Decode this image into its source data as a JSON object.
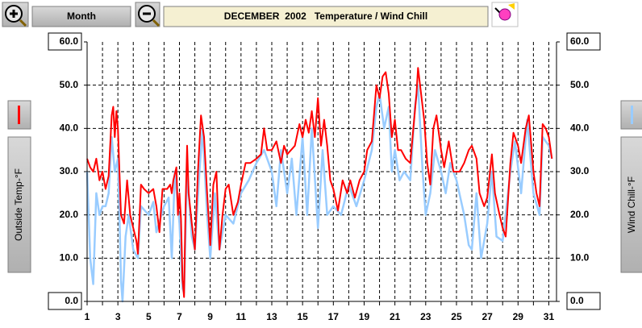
{
  "toolbar": {
    "button": "Month"
  },
  "chart_data": {
    "type": "line",
    "title": "DECEMBER  2002   Temperature / Wind Chill",
    "xlim": [
      1,
      31.5
    ],
    "xticks": [
      1,
      3,
      5,
      7,
      9,
      11,
      13,
      15,
      17,
      19,
      21,
      23,
      25,
      27,
      29,
      31
    ],
    "xminor_ticks": [
      2,
      4,
      6,
      8,
      10,
      12,
      14,
      16,
      18,
      20,
      22,
      24,
      26,
      28,
      30
    ],
    "ylim": [
      0,
      60
    ],
    "yticks": [
      {
        "value": 0,
        "label": "0.0"
      },
      {
        "value": 10,
        "label": "10.0"
      },
      {
        "value": 20,
        "label": "20.0"
      },
      {
        "value": 30,
        "label": "30.0"
      },
      {
        "value": 40,
        "label": "40.0"
      },
      {
        "value": 50,
        "label": "50.0"
      },
      {
        "value": 60,
        "label": "60.0"
      }
    ],
    "y2lim": [
      0,
      60
    ],
    "y2ticks": [
      {
        "value": 0,
        "label": "0.0"
      },
      {
        "value": 10,
        "label": "10.0"
      },
      {
        "value": 20,
        "label": "20.0"
      },
      {
        "value": 30,
        "label": "30.0"
      },
      {
        "value": 40,
        "label": "40.0"
      },
      {
        "value": 50,
        "label": "50.0"
      },
      {
        "value": 60,
        "label": "60.0"
      }
    ],
    "grid": true,
    "series": [
      {
        "name": "Wind Chill-°F",
        "color": "#99ccff",
        "axis": "y2",
        "x": [
          1.0,
          1.2,
          1.4,
          1.6,
          1.8,
          2.0,
          2.2,
          2.4,
          2.6,
          2.8,
          3.0,
          3.1,
          3.2,
          3.3,
          3.5,
          3.7,
          4.0,
          4.3,
          4.5,
          5.0,
          5.3,
          5.5,
          6.0,
          6.3,
          6.5,
          6.7,
          7.0,
          7.2,
          7.3,
          7.5,
          7.8,
          8.0,
          8.3,
          8.5,
          8.8,
          9.0,
          9.3,
          9.6,
          10.0,
          10.5,
          11.0,
          11.5,
          12.0,
          12.5,
          13.0,
          13.3,
          13.6,
          14.0,
          14.3,
          14.6,
          15.0,
          15.3,
          15.6,
          16.0,
          16.3,
          16.6,
          17.0,
          17.5,
          18.0,
          18.5,
          19.0,
          19.5,
          19.8,
          20.0,
          20.3,
          20.6,
          20.8,
          21.0,
          21.3,
          21.6,
          22.0,
          22.3,
          22.5,
          22.8,
          23.0,
          23.3,
          23.6,
          24.0,
          24.3,
          24.6,
          25.0,
          25.5,
          25.8,
          26.0,
          26.3,
          26.6,
          27.0,
          27.3,
          27.6,
          28.0,
          28.5,
          28.8,
          29.2,
          29.6,
          30.0,
          30.4,
          30.6,
          31.0,
          31.2
        ],
        "values": [
          30,
          10,
          4,
          25,
          20,
          22,
          22,
          25,
          38,
          30,
          33,
          20,
          5,
          0,
          15,
          20,
          12,
          10,
          22,
          20,
          23,
          16,
          22,
          24,
          10,
          30,
          18,
          3,
          2,
          30,
          15,
          12,
          30,
          40,
          20,
          10,
          25,
          12,
          20,
          18,
          25,
          28,
          32,
          35,
          30,
          22,
          35,
          25,
          33,
          20,
          38,
          20,
          40,
          17,
          35,
          20,
          22,
          20,
          27,
          22,
          28,
          35,
          45,
          48,
          40,
          45,
          30,
          35,
          28,
          30,
          28,
          45,
          50,
          30,
          20,
          25,
          35,
          30,
          25,
          32,
          28,
          20,
          13,
          12,
          25,
          10,
          18,
          30,
          15,
          14,
          30,
          37,
          25,
          42,
          25,
          20,
          38,
          36,
          33
        ]
      },
      {
        "name": "Outside Temp-°F",
        "color": "#ff0000",
        "axis": "y",
        "x": [
          1.0,
          1.2,
          1.4,
          1.6,
          1.8,
          2.0,
          2.2,
          2.4,
          2.6,
          2.7,
          2.8,
          2.9,
          3.0,
          3.1,
          3.2,
          3.4,
          3.6,
          3.8,
          4.0,
          4.2,
          4.3,
          4.5,
          4.7,
          5.0,
          5.3,
          5.5,
          5.7,
          5.9,
          6.2,
          6.4,
          6.5,
          6.6,
          6.8,
          6.9,
          7.0,
          7.1,
          7.2,
          7.3,
          7.4,
          7.5,
          7.6,
          7.8,
          8.0,
          8.2,
          8.4,
          8.6,
          8.8,
          9.0,
          9.2,
          9.4,
          9.6,
          9.8,
          10.0,
          10.2,
          10.5,
          10.8,
          11.0,
          11.3,
          11.6,
          12.0,
          12.3,
          12.5,
          12.7,
          13.0,
          13.3,
          13.6,
          13.8,
          14.0,
          14.5,
          14.8,
          15.0,
          15.2,
          15.4,
          15.6,
          15.8,
          16.0,
          16.2,
          16.4,
          16.6,
          16.8,
          17.0,
          17.3,
          17.6,
          17.9,
          18.1,
          18.4,
          18.7,
          19.0,
          19.2,
          19.5,
          19.8,
          20.0,
          20.2,
          20.4,
          20.6,
          20.8,
          21.0,
          21.2,
          21.4,
          21.7,
          22.0,
          22.2,
          22.4,
          22.5,
          22.7,
          22.9,
          23.1,
          23.3,
          23.5,
          23.7,
          24.0,
          24.2,
          24.5,
          24.8,
          25.2,
          25.5,
          25.8,
          26.0,
          26.3,
          26.5,
          26.8,
          27.0,
          27.3,
          27.5,
          27.8,
          28.0,
          28.2,
          28.5,
          28.7,
          29.0,
          29.2,
          29.5,
          29.7,
          30.0,
          30.2,
          30.4,
          30.6,
          30.8,
          31.0,
          31.2
        ],
        "values": [
          33,
          31,
          30,
          33,
          28,
          30,
          26,
          29,
          43,
          45,
          38,
          44,
          40,
          30,
          20,
          18,
          28,
          20,
          17,
          14,
          11,
          27,
          26,
          25,
          26,
          22,
          16,
          26,
          26,
          27,
          25,
          28,
          31,
          20,
          25,
          19,
          5,
          1,
          22,
          36,
          25,
          18,
          12,
          30,
          43,
          38,
          25,
          13,
          27,
          30,
          12,
          20,
          26,
          27,
          20,
          23,
          27,
          32,
          32,
          33,
          34,
          40,
          35,
          35,
          37,
          32,
          36,
          34,
          36,
          41,
          38,
          42,
          39,
          44,
          38,
          47,
          36,
          42,
          36,
          28,
          26,
          21,
          28,
          25,
          28,
          24,
          28,
          30,
          35,
          37,
          50,
          47,
          52,
          53,
          48,
          38,
          42,
          35,
          35,
          33,
          32,
          40,
          48,
          54,
          48,
          42,
          32,
          27,
          40,
          43,
          35,
          31,
          37,
          30,
          30,
          32,
          35,
          36,
          33,
          25,
          22,
          24,
          34,
          25,
          20,
          17,
          15,
          32,
          39,
          36,
          32,
          40,
          43,
          30,
          25,
          22,
          41,
          40,
          38,
          33
        ]
      }
    ]
  }
}
